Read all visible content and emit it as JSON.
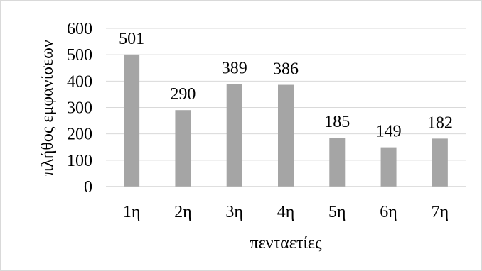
{
  "chart_data": {
    "type": "bar",
    "title": "",
    "xlabel": "πενταετίες",
    "ylabel": "πλήθος εμφανίσεων",
    "categories": [
      "1η",
      "2η",
      "3η",
      "4η",
      "5η",
      "6η",
      "7η"
    ],
    "values": [
      501,
      290,
      389,
      386,
      185,
      149,
      182
    ],
    "data_labels": [
      "501",
      "290",
      "389",
      "386",
      "185",
      "149",
      "182"
    ],
    "ylim": [
      0,
      600
    ],
    "yticks": [
      "0",
      "100",
      "200",
      "300",
      "400",
      "500",
      "600"
    ],
    "grid": true,
    "legend": "none",
    "colors": {
      "bar": "#a5a5a5",
      "grid": "#d9d9d9",
      "axis": "#bfbfbf",
      "text": "#000000"
    }
  }
}
